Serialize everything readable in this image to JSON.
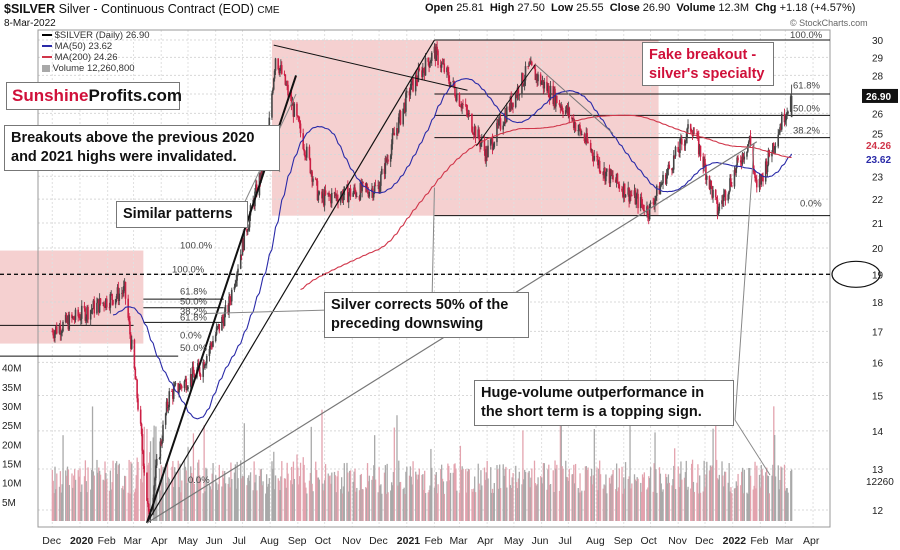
{
  "header": {
    "symbol": "$SILVER",
    "description": "Silver - Continuous Contract (EOD)",
    "exchange": "CME",
    "date": "8-Mar-2022",
    "open_label": "Open",
    "open": "25.81",
    "high_label": "High",
    "high": "27.50",
    "low_label": "Low",
    "low": "25.55",
    "close_label": "Close",
    "close": "26.90",
    "volume_label": "Volume",
    "volume": "12.3M",
    "chg_label": "Chg",
    "chg": "+1.18 (+4.57%)",
    "watermark": "© StockCharts.com"
  },
  "legend": {
    "price": "$SILVER (Daily) 26.90",
    "ma50": "MA(50) 23.62",
    "ma200": "MA(200) 24.26",
    "volume": "Volume 12,260,800"
  },
  "brand": {
    "part1": "Sunshine",
    "part2": "Profits.com"
  },
  "callouts": {
    "breakouts": "Breakouts above the previous 2020 and 2021 highs were invalidated.",
    "similar": "Similar patterns",
    "corrects": "Silver corrects 50% of the preceding downswing",
    "fake": "Fake breakout - silver's specialty",
    "volume": "Huge-volume outperformance in the short term is a topping sign."
  },
  "colors": {
    "up": "#444444",
    "down": "#cc1f44",
    "ma50": "#2a2aa8",
    "ma200": "#d0364a",
    "zone": "#f2c4c4",
    "volume_bar": "#a9a9a9",
    "callout_red": "#d0103a"
  },
  "price_axis": {
    "ticks": [
      "30",
      "29",
      "28",
      "27",
      "26",
      "25",
      "24",
      "23",
      "22",
      "21",
      "20",
      "19",
      "18",
      "17",
      "16",
      "15",
      "14",
      "13",
      "12"
    ],
    "last_close_label": "26.90",
    "ma200_label": "24.26",
    "ma50_label": "23.62",
    "volume_label": "12260"
  },
  "volume_axis": {
    "ticks": [
      "40M",
      "35M",
      "30M",
      "25M",
      "20M",
      "15M",
      "10M",
      "5M"
    ]
  },
  "x_axis": {
    "ticks": [
      "Dec",
      "2020",
      "Feb",
      "Mar",
      "Apr",
      "May",
      "Jun",
      "Jul",
      "Aug",
      "Sep",
      "Oct",
      "Nov",
      "Dec",
      "2021",
      "Feb",
      "Mar",
      "Apr",
      "May",
      "Jun",
      "Jul",
      "Aug",
      "Sep",
      "Oct",
      "Nov",
      "Dec",
      "2022",
      "Feb",
      "Mar",
      "Apr"
    ]
  },
  "fib_labels": {
    "set2021": [
      "100.0%",
      "61.8%",
      "50.0%",
      "38.2%",
      "0.0%"
    ],
    "set2020_a": [
      "100.0%",
      "61.8%",
      "50.0%",
      "38.2%",
      "0.0%"
    ],
    "set2020_b": [
      "100.0%",
      "61.8%",
      "50.0%",
      "0.0%"
    ]
  },
  "chart_data": {
    "type": "candlestick",
    "title": "$SILVER Silver - Continuous Contract (EOD)",
    "x_range": [
      "2019-12",
      "2022-04"
    ],
    "ylim": [
      11.5,
      30.5
    ],
    "y_scale": "log",
    "grid": true,
    "legend_position": "top-left",
    "series": [
      {
        "name": "$SILVER (Daily)",
        "last": 26.9,
        "waypoints": [
          [
            "2019-12-01",
            17.0
          ],
          [
            "2020-01-10",
            17.7
          ],
          [
            "2020-02-20",
            18.4
          ],
          [
            "2020-03-18",
            11.8
          ],
          [
            "2020-04-10",
            15.0
          ],
          [
            "2020-05-15",
            15.8
          ],
          [
            "2020-06-15",
            17.8
          ],
          [
            "2020-07-28",
            24.0
          ],
          [
            "2020-08-07",
            29.1
          ],
          [
            "2020-09-25",
            22.0
          ],
          [
            "2020-11-30",
            22.5
          ],
          [
            "2021-01-05",
            27.3
          ],
          [
            "2021-02-01",
            29.3
          ],
          [
            "2021-03-31",
            24.0
          ],
          [
            "2021-05-18",
            28.4
          ],
          [
            "2021-07-01",
            26.0
          ],
          [
            "2021-08-10",
            23.2
          ],
          [
            "2021-09-29",
            21.5
          ],
          [
            "2021-11-16",
            25.4
          ],
          [
            "2021-12-15",
            21.5
          ],
          [
            "2022-01-20",
            24.7
          ],
          [
            "2022-01-28",
            22.3
          ],
          [
            "2022-03-08",
            26.9
          ]
        ]
      },
      {
        "name": "MA(50)",
        "last": 23.62
      },
      {
        "name": "MA(200)",
        "last": 24.26
      },
      {
        "name": "Volume",
        "last": 12260800,
        "unit": "shares"
      }
    ],
    "annotations": [
      "Fake breakout - silver's specialty",
      "Silver corrects 50% of the preceding downswing",
      "Huge-volume outperformance in the short term is a topping sign."
    ]
  }
}
